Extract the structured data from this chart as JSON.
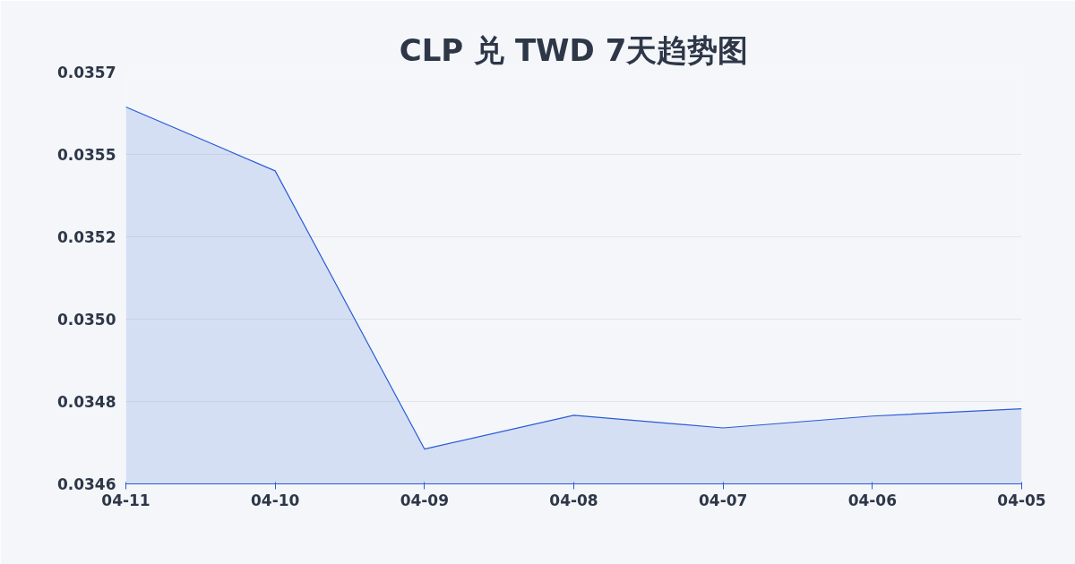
{
  "chart_data": {
    "type": "area",
    "title": "CLP 兑 TWD 7天趋势图",
    "categories": [
      "04-11",
      "04-10",
      "04-09",
      "04-08",
      "04-07",
      "04-06",
      "04-05"
    ],
    "series": [
      {
        "color": "#2a5bd7",
        "values": [
          0.035579,
          0.035412,
          0.034686,
          0.034774,
          0.034741,
          0.034772,
          0.034791
        ]
      }
    ],
    "ylim": [
      0.034595,
      0.03567
    ],
    "yticks": [
      {
        "value": 0.034595,
        "label": "0.0346"
      },
      {
        "value": 0.03481,
        "label": "0.0348"
      },
      {
        "value": 0.035025,
        "label": "0.0350"
      },
      {
        "value": 0.03524,
        "label": "0.0352"
      },
      {
        "value": 0.035455,
        "label": "0.0355"
      },
      {
        "value": 0.03567,
        "label": "0.0357"
      }
    ],
    "grid": "y",
    "marker": "none"
  }
}
